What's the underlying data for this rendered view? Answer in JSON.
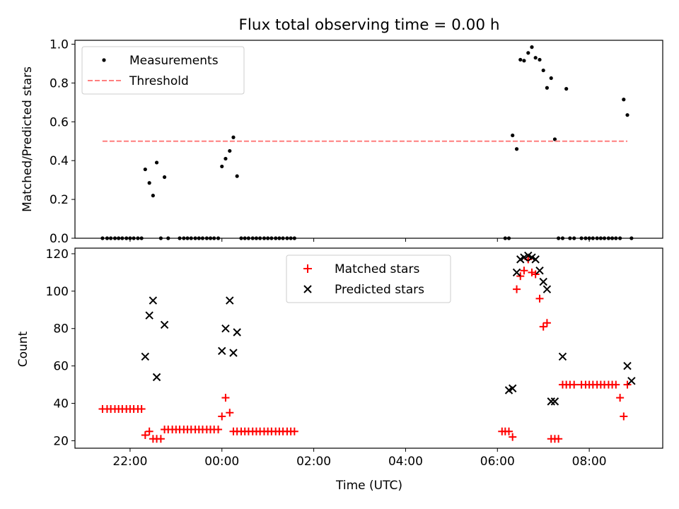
{
  "chart_data": [
    {
      "type": "scatter",
      "title": "Flux total observing time = 0.00 h",
      "xlabel": "",
      "ylabel": "Matched/Predicted stars",
      "ylim": [
        0,
        1.02
      ],
      "yticks": [
        0.0,
        0.2,
        0.4,
        0.6,
        0.8,
        1.0
      ],
      "ytick_labels": [
        "0.0",
        "0.2",
        "0.4",
        "0.6",
        "0.8",
        "1.0"
      ],
      "xlim_hours": [
        -3.2,
        9.6
      ],
      "xticks_hours": [
        -2,
        0,
        2,
        4,
        6,
        8
      ],
      "legend_position": "upper-left",
      "series": [
        {
          "name": "Measurements",
          "kind": "points",
          "color": "#000000",
          "x": [
            -2.6,
            -2.5,
            -2.42,
            -2.33,
            -2.25,
            -2.17,
            -2.08,
            -2.0,
            -1.92,
            -1.83,
            -1.75,
            -1.67,
            -1.58,
            -1.5,
            -1.42,
            -1.33,
            -1.25,
            -1.17,
            -0.92,
            -0.83,
            -0.75,
            -0.67,
            -0.58,
            -0.5,
            -0.42,
            -0.33,
            -0.25,
            -0.17,
            -0.08,
            0.0,
            0.08,
            0.17,
            0.25,
            0.33,
            0.42,
            0.5,
            0.58,
            0.67,
            0.75,
            0.83,
            0.92,
            1.0,
            1.08,
            1.17,
            1.25,
            1.33,
            1.42,
            1.5,
            1.58,
            6.17,
            6.25,
            6.33,
            6.42,
            6.5,
            6.58,
            6.67,
            6.75,
            6.83,
            6.92,
            7.0,
            7.08,
            7.17,
            7.25,
            7.33,
            7.42,
            7.5,
            7.58,
            7.67,
            7.83,
            7.92,
            8.0,
            8.08,
            8.17,
            8.25,
            8.33,
            8.42,
            8.5,
            8.58,
            8.67,
            8.75,
            8.83,
            8.92
          ],
          "x_time": [
            "21:24",
            "21:30",
            "21:35",
            "21:40",
            "21:45",
            "21:50",
            "21:55",
            "22:00",
            "22:05",
            "22:10",
            "22:15",
            "22:20",
            "22:25",
            "22:30",
            "22:35",
            "22:40",
            "22:45",
            "22:50",
            "23:05",
            "23:10",
            "23:15",
            "23:20",
            "23:25",
            "23:30",
            "23:35",
            "23:40",
            "23:45",
            "23:50",
            "23:55",
            "00:00",
            "00:05",
            "00:10",
            "00:15",
            "00:20",
            "00:25",
            "00:30",
            "00:35",
            "00:40",
            "00:45",
            "00:50",
            "00:55",
            "01:00",
            "01:05",
            "01:10",
            "01:15",
            "01:20",
            "01:25",
            "01:30",
            "01:35",
            "06:10",
            "06:15",
            "06:20",
            "06:25",
            "06:30",
            "06:35",
            "06:40",
            "06:45",
            "06:50",
            "06:55",
            "07:00",
            "07:05",
            "07:10",
            "07:15",
            "07:20",
            "07:25",
            "07:30",
            "07:35",
            "07:40",
            "07:50",
            "07:55",
            "08:00",
            "08:05",
            "08:10",
            "08:15",
            "08:20",
            "08:25",
            "08:30",
            "08:35",
            "08:40",
            "08:45",
            "08:50",
            "08:55"
          ],
          "y": [
            0,
            0,
            0,
            0,
            0,
            0,
            0,
            0,
            0,
            0,
            0,
            0.355,
            0.285,
            0.22,
            0.39,
            0,
            0.315,
            0,
            0,
            0,
            0,
            0,
            0,
            0,
            0,
            0,
            0,
            0,
            0,
            0.37,
            0.41,
            0.45,
            0.52,
            0.32,
            0,
            0,
            0,
            0,
            0,
            0,
            0,
            0,
            0,
            0,
            0,
            0,
            0,
            0,
            0,
            0,
            0,
            0.53,
            0.46,
            0.92,
            0.915,
            0.955,
            0.985,
            0.93,
            0.92,
            0.865,
            0.775,
            0.825,
            0.51,
            0,
            0,
            0.77,
            0,
            0,
            0,
            0,
            0,
            0,
            0,
            0,
            0,
            0,
            0,
            0,
            0,
            0.715,
            0.635,
            0
          ]
        },
        {
          "name": "Threshold",
          "kind": "dashed-line",
          "color": "#ff7f7f",
          "y": 0.5,
          "x_range": [
            -2.6,
            8.83
          ]
        }
      ]
    },
    {
      "type": "scatter",
      "title": "",
      "xlabel": "Time (UTC)",
      "ylabel": "Count",
      "ylim": [
        16,
        123
      ],
      "yticks": [
        20,
        40,
        60,
        80,
        100,
        120
      ],
      "ytick_labels": [
        "20",
        "40",
        "60",
        "80",
        "100",
        "120"
      ],
      "xlim_hours": [
        -3.2,
        9.6
      ],
      "xticks_hours": [
        -2,
        0,
        2,
        4,
        6,
        8
      ],
      "xtick_labels": [
        "22:00",
        "00:00",
        "02:00",
        "04:00",
        "06:00",
        "08:00"
      ],
      "legend_position": "upper-center",
      "series": [
        {
          "name": "Matched stars",
          "marker": "plus",
          "color": "#ff0000",
          "x": [
            -2.6,
            -2.5,
            -2.42,
            -2.33,
            -2.25,
            -2.17,
            -2.08,
            -2.0,
            -1.92,
            -1.83,
            -1.75,
            -1.67,
            -1.58,
            -1.5,
            -1.42,
            -1.33,
            -1.25,
            -1.17,
            -1.08,
            -1.0,
            -0.92,
            -0.83,
            -0.75,
            -0.67,
            -0.58,
            -0.5,
            -0.42,
            -0.33,
            -0.25,
            -0.17,
            -0.08,
            0.0,
            0.08,
            0.17,
            0.25,
            0.33,
            0.42,
            0.5,
            0.58,
            0.67,
            0.75,
            0.83,
            0.92,
            1.0,
            1.08,
            1.17,
            1.25,
            1.33,
            1.42,
            1.5,
            1.58,
            6.1,
            6.17,
            6.25,
            6.33,
            6.42,
            6.5,
            6.58,
            6.67,
            6.75,
            6.83,
            6.92,
            7.0,
            7.08,
            7.17,
            7.25,
            7.33,
            7.42,
            7.5,
            7.58,
            7.67,
            7.83,
            7.92,
            8.0,
            8.08,
            8.17,
            8.25,
            8.33,
            8.42,
            8.5,
            8.58,
            8.67,
            8.75,
            8.83
          ],
          "y": [
            37,
            37,
            37,
            37,
            37,
            37,
            37,
            37,
            37,
            37,
            37,
            23,
            25,
            21,
            21,
            21,
            26,
            26,
            26,
            26,
            26,
            26,
            26,
            26,
            26,
            26,
            26,
            26,
            26,
            26,
            26,
            33,
            43,
            35,
            25,
            25,
            25,
            25,
            25,
            25,
            25,
            25,
            25,
            25,
            25,
            25,
            25,
            25,
            25,
            25,
            25,
            25,
            25,
            25,
            22,
            101,
            108,
            111,
            117,
            110,
            109,
            96,
            81,
            83,
            21,
            21,
            21,
            50,
            50,
            50,
            50,
            50,
            50,
            50,
            50,
            50,
            50,
            50,
            50,
            50,
            50,
            43,
            33,
            50
          ]
        },
        {
          "name": "Predicted stars",
          "marker": "x",
          "color": "#000000",
          "x": [
            -1.67,
            -1.58,
            -1.5,
            -1.42,
            -1.25,
            0.0,
            0.08,
            0.17,
            0.25,
            0.33,
            6.25,
            6.33,
            6.42,
            6.5,
            6.58,
            6.67,
            6.75,
            6.83,
            6.92,
            7.0,
            7.08,
            7.17,
            7.25,
            7.42,
            8.83,
            8.92
          ],
          "y": [
            65,
            87,
            95,
            54,
            82,
            68,
            80,
            95,
            67,
            78,
            47,
            48,
            110,
            117,
            118,
            119,
            118,
            117,
            111,
            105,
            101,
            41,
            41,
            65,
            60,
            52
          ]
        }
      ]
    }
  ]
}
